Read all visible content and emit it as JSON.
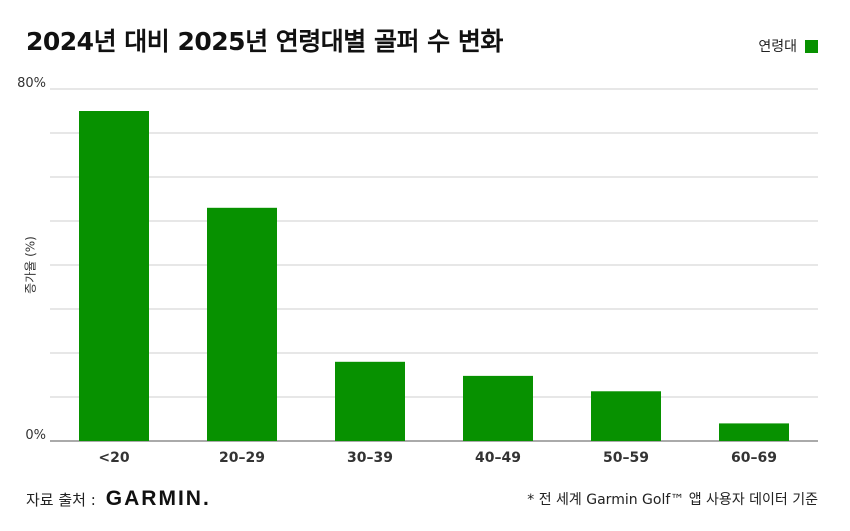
{
  "colors": {
    "bar": "#079100",
    "grid": "#cfcfcf",
    "axis": "#555555"
  },
  "legend": {
    "label": "연령대"
  },
  "footer": {
    "source_label": "자료 출처 :",
    "brand": "GARMIN.",
    "note": "* 전 세계 Garmin Golf™ 앱 사용자 데이터 기준"
  },
  "chart_data": {
    "type": "bar",
    "title": "2024년 대비 2025년 연령대별 골퍼 수 변화",
    "xlabel": "",
    "ylabel": "증가율 (%)",
    "categories": [
      "<20",
      "20–29",
      "30–39",
      "40–49",
      "50–59",
      "60–69"
    ],
    "series": [
      {
        "name": "연령대",
        "values": [
          75,
          53,
          18,
          14.8,
          11.3,
          4
        ]
      }
    ],
    "ylim": [
      0,
      80
    ],
    "yticks": [
      0,
      80
    ],
    "ytick_labels": [
      "0%",
      "80%"
    ],
    "grid_step": 10,
    "grid": true,
    "legend_position": "top-right"
  }
}
